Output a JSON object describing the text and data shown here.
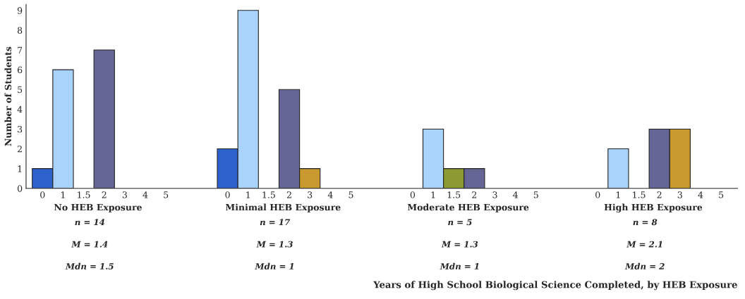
{
  "chart_data": {
    "type": "bar",
    "ylabel": "Number of Students",
    "categories": [
      "0",
      "1",
      "1.5",
      "2",
      "3",
      "4",
      "5",
      null,
      null,
      "0",
      "1",
      "1.5",
      "2",
      "3",
      "4",
      "5",
      null,
      null,
      "0",
      "1",
      "1.5",
      "2",
      "3",
      "4",
      "5",
      null,
      null,
      "0",
      "1",
      "1.5",
      "2",
      "3",
      "4",
      "5"
    ],
    "values": [
      1,
      6,
      null,
      7,
      null,
      null,
      null,
      null,
      null,
      2,
      9,
      null,
      5,
      1,
      null,
      null,
      null,
      null,
      null,
      3,
      1,
      1,
      null,
      null,
      null,
      null,
      null,
      null,
      2,
      null,
      3,
      3,
      null,
      null
    ],
    "colors": [
      "#2e62cc",
      "#a9d3fb",
      null,
      "#656696",
      null,
      null,
      null,
      null,
      null,
      "#2e62cc",
      "#a9d3fb",
      null,
      "#656696",
      "#c8992f",
      null,
      null,
      null,
      null,
      null,
      "#a9d3fb",
      "#8c9a32",
      "#656696",
      null,
      null,
      null,
      null,
      null,
      null,
      "#a9d3fb",
      null,
      "#656696",
      "#c8992f",
      null,
      null
    ],
    "ylim": [
      0,
      9.3
    ],
    "yticks": [
      0,
      1,
      2,
      3,
      4,
      5,
      6,
      7,
      8,
      9
    ],
    "grid": false,
    "annotations": [
      "No HEB Exposure",
      "n = 14",
      "M = 1.4",
      "Mdn = 1.5",
      "Minimal HEB Exposure",
      "n = 17",
      "M = 1.3",
      "Mdn = 1",
      "Moderate HEB Exposure",
      "n = 5",
      "M = 1.3",
      "Mdn = 1",
      "High HEB Exposure",
      "n = 8",
      "M = 2.1",
      "Mdn = 2",
      "Years of High School Biological Science Completed, by HEB Exposure"
    ]
  }
}
